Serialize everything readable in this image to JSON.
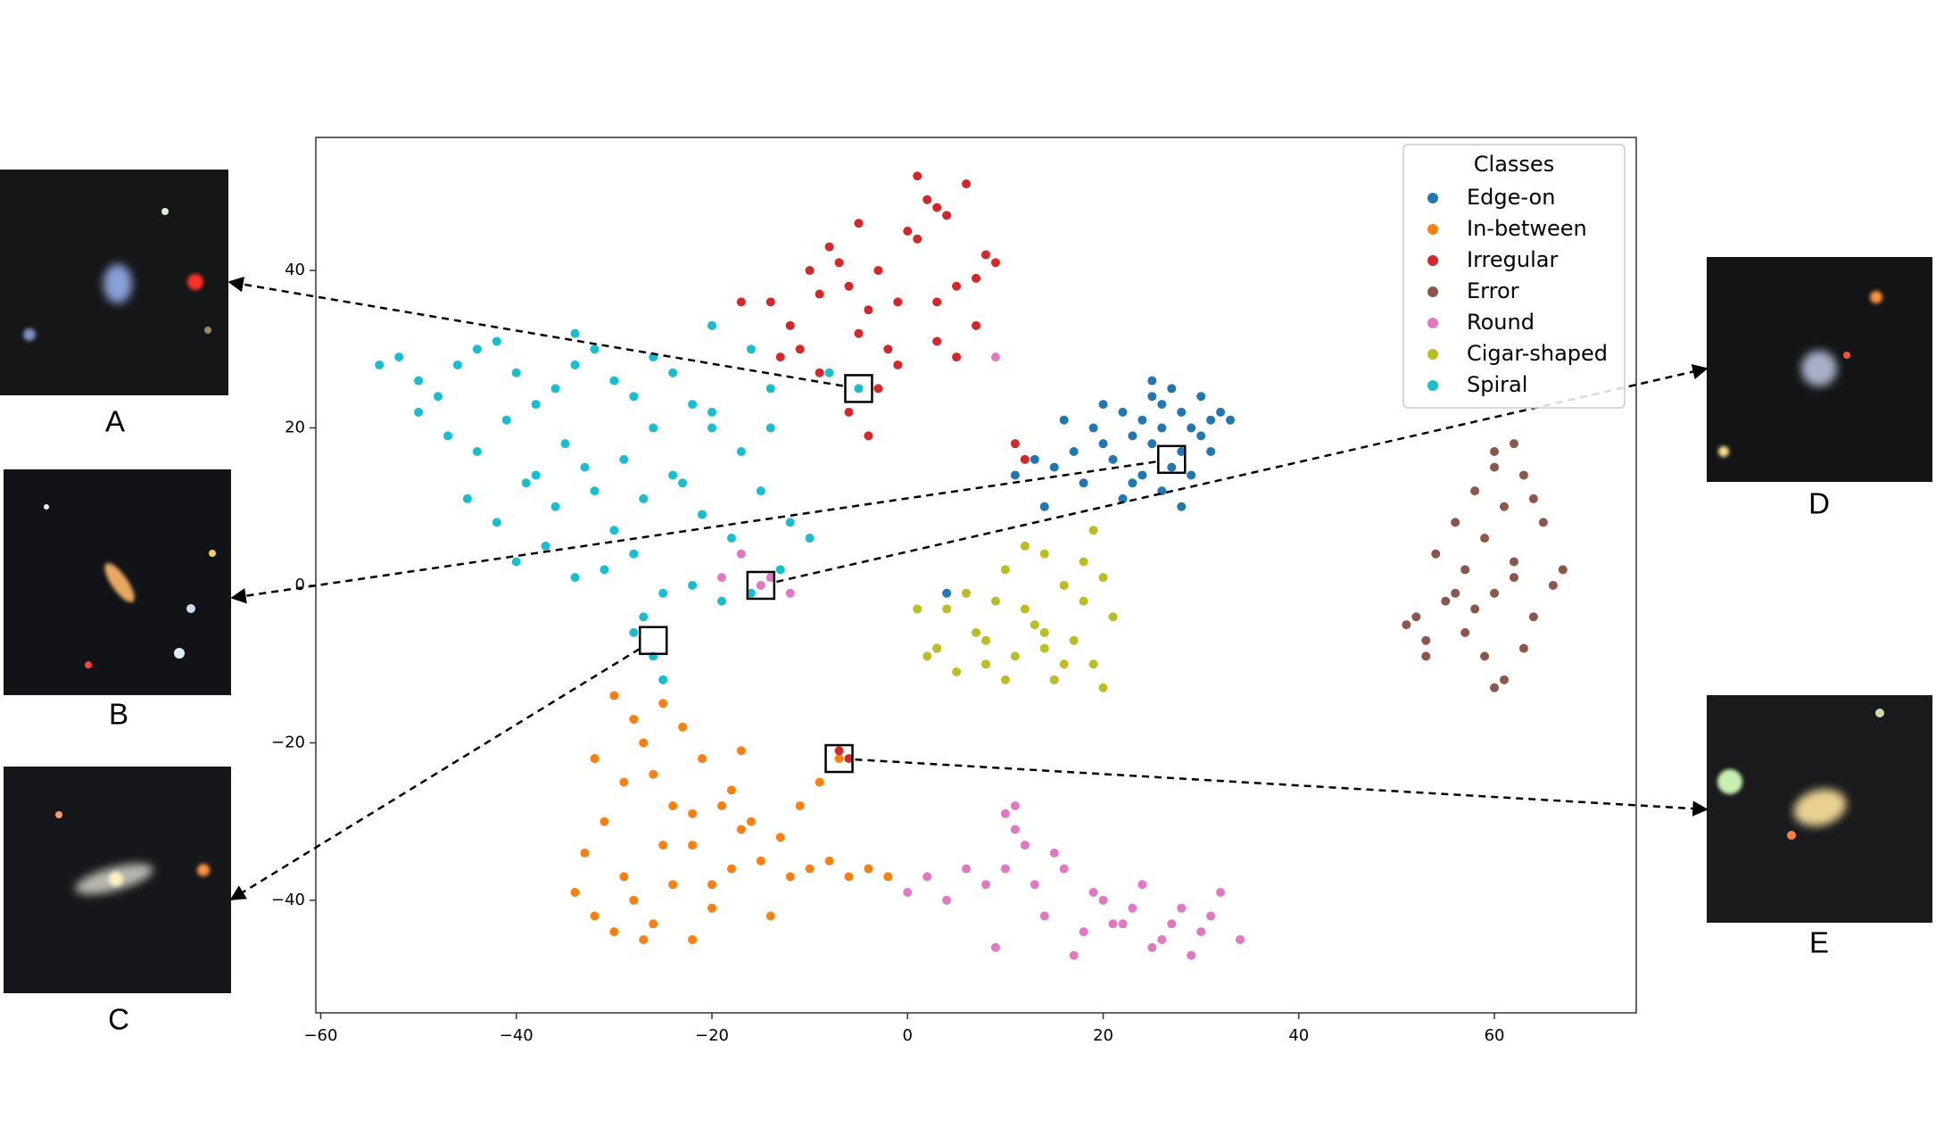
{
  "chart_data": {
    "type": "scatter",
    "legend_title": "Classes",
    "legend": "upper right",
    "xlim": [
      -60.5,
      74.5
    ],
    "ylim": [
      -54.3,
      56.9
    ],
    "xticks": [
      {
        "value": -60,
        "label": "−60"
      },
      {
        "value": -40,
        "label": "−40"
      },
      {
        "value": -20,
        "label": "−20"
      },
      0,
      20,
      40,
      60
    ],
    "yticks": [
      {
        "value": -40,
        "label": "−40"
      },
      {
        "value": -20,
        "label": "−20"
      },
      0,
      20,
      40
    ],
    "series": [
      {
        "name": "Edge-on",
        "color": "#1f77b4",
        "x": [
          13,
          15,
          17,
          19,
          20,
          22,
          23,
          24,
          25,
          26,
          27,
          28,
          29,
          30,
          31,
          32,
          24,
          26,
          28,
          30,
          18,
          21,
          25,
          27,
          29,
          31,
          16,
          22,
          20,
          23,
          26,
          28,
          14,
          11,
          33,
          25,
          4,
          3
        ],
        "values": [
          16,
          15,
          17,
          20,
          18,
          22,
          19,
          21,
          24,
          23,
          25,
          22,
          20,
          24,
          21,
          22,
          14,
          12,
          17,
          19,
          13,
          16,
          18,
          15,
          14,
          17,
          21,
          11,
          23,
          13,
          20,
          10,
          10,
          14,
          21,
          26,
          -1,
          -8
        ]
      },
      {
        "name": "In-between",
        "color": "#ff7f0e",
        "x": [
          -34,
          -32,
          -30,
          -28,
          -26,
          -24,
          -22,
          -20,
          -18,
          -33,
          -31,
          -29,
          -27,
          -25,
          -23,
          -21,
          -19,
          -17,
          -15,
          -13,
          -11,
          -9,
          -7,
          -30,
          -28,
          -26,
          -24,
          -22,
          -20,
          -18,
          -16,
          -14,
          -12,
          -10,
          -8,
          -6,
          -4,
          -2,
          -32,
          -27,
          -22,
          -17,
          -29,
          -25
        ],
        "values": [
          -39,
          -42,
          -44,
          -40,
          -43,
          -38,
          -45,
          -41,
          -36,
          -34,
          -30,
          -25,
          -20,
          -15,
          -18,
          -22,
          -28,
          -31,
          -35,
          -32,
          -28,
          -25,
          -22,
          -14,
          -17,
          -24,
          -28,
          -33,
          -38,
          -26,
          -30,
          -42,
          -37,
          -36,
          -35,
          -37,
          -36,
          -37,
          -22,
          -45,
          -29,
          -21,
          -37,
          -33
        ]
      },
      {
        "name": "Irregular",
        "color": "#d62728",
        "x": [
          -14,
          -12,
          -10,
          -8,
          -6,
          -4,
          -2,
          0,
          2,
          4,
          6,
          8,
          -11,
          -9,
          -7,
          -5,
          -3,
          -1,
          1,
          3,
          5,
          7,
          9,
          -13,
          -9,
          -5,
          -1,
          3,
          7,
          1,
          3,
          5,
          -17,
          -6,
          -4,
          -3,
          -7,
          -6,
          11,
          12
        ],
        "values": [
          36,
          33,
          40,
          43,
          38,
          35,
          30,
          45,
          49,
          47,
          51,
          42,
          30,
          37,
          41,
          46,
          40,
          36,
          44,
          48,
          38,
          39,
          41,
          29,
          27,
          32,
          28,
          31,
          33,
          52,
          36,
          29,
          36,
          22,
          19,
          25,
          -21,
          -22,
          18,
          16
        ]
      },
      {
        "name": "Error",
        "color": "#8c564b",
        "x": [
          52,
          53,
          55,
          57,
          59,
          61,
          63,
          65,
          67,
          54,
          56,
          58,
          60,
          62,
          64,
          66,
          57,
          59,
          61,
          63,
          58,
          60,
          62,
          64,
          56,
          60,
          62,
          60,
          51,
          53
        ],
        "values": [
          -4,
          -7,
          -2,
          2,
          6,
          10,
          14,
          8,
          2,
          4,
          8,
          12,
          15,
          18,
          11,
          0,
          -6,
          -9,
          -12,
          -8,
          -3,
          -1,
          1,
          -4,
          -1,
          17,
          3,
          -13,
          -5,
          -9
        ]
      },
      {
        "name": "Round",
        "color": "#e377c2",
        "x": [
          0,
          2,
          4,
          6,
          8,
          10,
          12,
          14,
          16,
          18,
          20,
          22,
          24,
          26,
          28,
          30,
          32,
          34,
          9,
          11,
          13,
          15,
          17,
          19,
          21,
          23,
          25,
          27,
          29,
          31,
          10,
          11,
          -15,
          -14,
          -19,
          -12,
          -17,
          9
        ],
        "values": [
          -39,
          -37,
          -40,
          -36,
          -38,
          -29,
          -33,
          -42,
          -36,
          -44,
          -40,
          -43,
          -38,
          -45,
          -41,
          -44,
          -39,
          -45,
          -46,
          -31,
          -38,
          -34,
          -47,
          -39,
          -43,
          -41,
          -46,
          -43,
          -47,
          -42,
          -36,
          -28,
          0,
          1,
          1,
          -1,
          4,
          29
        ]
      },
      {
        "name": "Cigar-shaped",
        "color": "#bcbd22",
        "x": [
          1,
          3,
          5,
          7,
          9,
          11,
          13,
          15,
          17,
          19,
          21,
          2,
          4,
          6,
          8,
          10,
          12,
          14,
          16,
          18,
          20,
          10,
          12,
          14,
          16,
          18,
          20,
          8,
          14,
          19
        ],
        "values": [
          -3,
          -8,
          -11,
          -6,
          -2,
          -9,
          -5,
          -12,
          -7,
          -10,
          -4,
          -9,
          -3,
          -1,
          -7,
          -12,
          -3,
          -8,
          -10,
          -2,
          1,
          2,
          5,
          4,
          0,
          3,
          -13,
          -10,
          -6,
          7
        ]
      },
      {
        "name": "Spiral",
        "color": "#17becf",
        "x": [
          -54,
          -52,
          -50,
          -48,
          -46,
          -44,
          -42,
          -40,
          -38,
          -36,
          -34,
          -32,
          -30,
          -28,
          -26,
          -24,
          -22,
          -20,
          -50,
          -47,
          -44,
          -41,
          -38,
          -35,
          -32,
          -29,
          -26,
          -23,
          -20,
          -17,
          -14,
          -45,
          -42,
          -39,
          -36,
          -33,
          -30,
          -27,
          -24,
          -21,
          -18,
          -15,
          -12,
          -40,
          -37,
          -34,
          -31,
          -28,
          -25,
          -22,
          -19,
          -16,
          -13,
          -27,
          -26,
          -28,
          -25,
          -10,
          -16,
          -5,
          -8,
          -20,
          -14,
          -34
        ],
        "values": [
          28,
          29,
          26,
          24,
          28,
          30,
          31,
          27,
          23,
          25,
          28,
          30,
          26,
          24,
          29,
          27,
          23,
          20,
          22,
          19,
          17,
          21,
          14,
          18,
          12,
          16,
          20,
          13,
          22,
          17,
          25,
          11,
          8,
          13,
          10,
          15,
          7,
          11,
          14,
          9,
          6,
          12,
          8,
          3,
          5,
          1,
          2,
          4,
          -1,
          0,
          -2,
          -1,
          2,
          -4,
          -9,
          -6,
          -12,
          6,
          30,
          25,
          27,
          33,
          20,
          32
        ]
      }
    ],
    "annotations": [
      {
        "label": "A",
        "x": -5,
        "y": 25
      },
      {
        "label": "B",
        "x": 27,
        "y": 16
      },
      {
        "label": "C",
        "x": -26,
        "y": -7
      },
      {
        "label": "D",
        "x": -15,
        "y": 0
      },
      {
        "label": "E",
        "x": -7,
        "y": -22
      }
    ]
  }
}
